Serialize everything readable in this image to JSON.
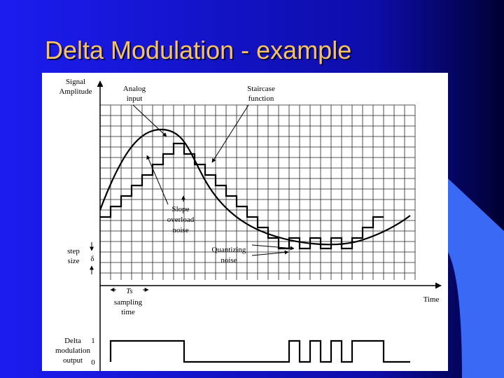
{
  "header": {
    "title": "Delta Modulation - example"
  },
  "diagram": {
    "y_axis_label": [
      "Signal",
      "Amplitude"
    ],
    "analog_label": [
      "Analog",
      "input"
    ],
    "staircase_label": [
      "Staircase",
      "function"
    ],
    "slope_label": [
      "Slope",
      "overload",
      "noise"
    ],
    "quantizing_label": [
      "Quantizing",
      "noise"
    ],
    "step_label": [
      "step",
      "size"
    ],
    "step_symbol": "δ",
    "sampling_symbol": "Ts",
    "sampling_label": [
      "sampling",
      "time"
    ],
    "x_axis_label": "Time",
    "output_label": [
      "Delta",
      "modulation",
      "output"
    ],
    "output_high": "1",
    "output_low": "0"
  }
}
